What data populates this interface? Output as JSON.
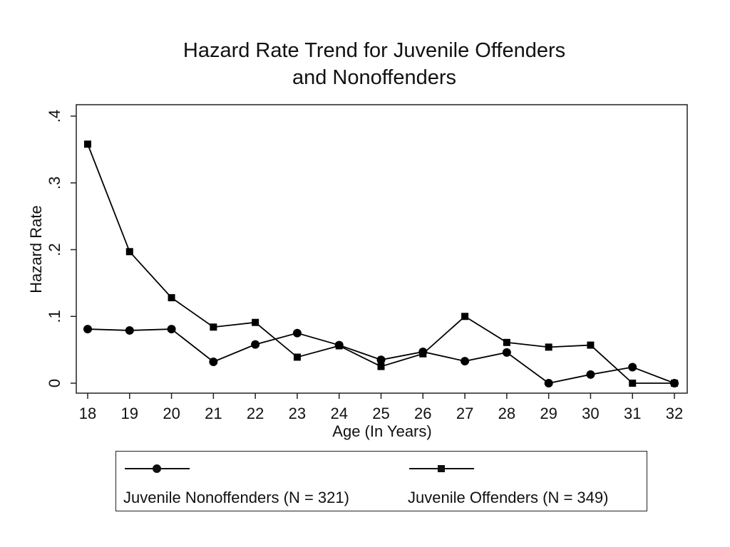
{
  "title_lines": [
    "Hazard Rate Trend for Juvenile Offenders",
    "and Nonoffenders"
  ],
  "chart_data": {
    "type": "line",
    "title": "Hazard Rate Trend for Juvenile Offenders and Nonoffenders",
    "xlabel": "Age (In Years)",
    "ylabel": "Hazard Rate",
    "x": [
      18,
      19,
      20,
      21,
      22,
      23,
      24,
      25,
      26,
      27,
      28,
      29,
      30,
      31,
      32
    ],
    "xlim": [
      18,
      32
    ],
    "ylim": [
      0,
      0.4
    ],
    "x_ticks": [
      "18",
      "19",
      "20",
      "21",
      "22",
      "23",
      "24",
      "25",
      "26",
      "27",
      "28",
      "29",
      "30",
      "31",
      "32"
    ],
    "y_ticks": [
      {
        "value": 0,
        "label": "0"
      },
      {
        "value": 0.1,
        "label": ".1"
      },
      {
        "value": 0.2,
        "label": ".2"
      },
      {
        "value": 0.3,
        "label": ".3"
      },
      {
        "value": 0.4,
        "label": ".4"
      }
    ],
    "grid": false,
    "legend_position": "bottom",
    "series": [
      {
        "name": "Juvenile Nonoffenders (N = 321)",
        "marker": "circle",
        "color": "#000000",
        "values": [
          0.081,
          0.079,
          0.081,
          0.032,
          0.058,
          0.075,
          0.057,
          0.035,
          0.047,
          0.033,
          0.046,
          0.0,
          0.013,
          0.024,
          0.0
        ]
      },
      {
        "name": "Juvenile Offenders (N = 349)",
        "marker": "square",
        "color": "#000000",
        "values": [
          0.358,
          0.197,
          0.128,
          0.084,
          0.091,
          0.039,
          0.056,
          0.025,
          0.044,
          0.1,
          0.061,
          0.054,
          0.057,
          0.0,
          0.0
        ]
      }
    ]
  }
}
